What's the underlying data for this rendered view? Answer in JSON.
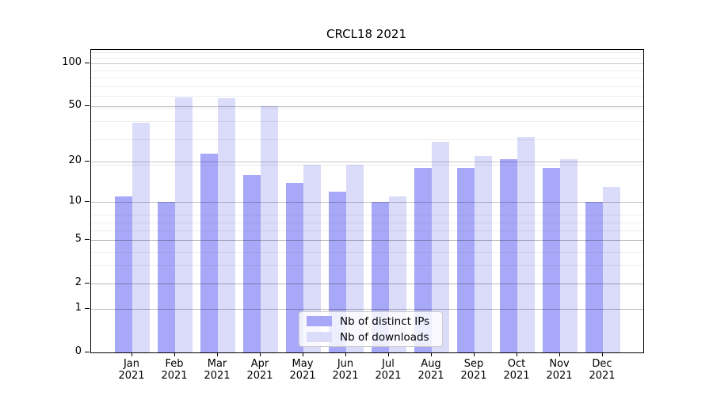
{
  "title": "CRCL18 2021",
  "legend": {
    "entries": [
      {
        "label": "Nb of distinct IPs",
        "color": "#a8a8f8"
      },
      {
        "label": "Nb of downloads",
        "color": "#dbdbfa"
      }
    ]
  },
  "chart_data": {
    "type": "bar",
    "title": "CRCL18 2021",
    "xlabel": "",
    "ylabel": "",
    "yscale": "log(1+x)",
    "ylim": [
      0,
      124
    ],
    "grid": true,
    "legend_position": "lower center",
    "categories": [
      "Jan 2021",
      "Feb 2021",
      "Mar 2021",
      "Apr 2021",
      "May 2021",
      "Jun 2021",
      "Jul 2021",
      "Aug 2021",
      "Sep 2021",
      "Oct 2021",
      "Nov 2021",
      "Dec 2021"
    ],
    "ytick_labels": [
      "100",
      "50",
      "20",
      "10",
      "5",
      "2",
      "1",
      "0"
    ],
    "ytick_values": [
      100,
      50,
      20,
      10,
      5,
      2,
      1,
      0
    ],
    "series": [
      {
        "name": "Nb of distinct IPs",
        "color": "#a8a8f8",
        "values": [
          11,
          10,
          23,
          16,
          14,
          12,
          10,
          18,
          18,
          21,
          18,
          10
        ]
      },
      {
        "name": "Nb of downloads",
        "color": "#dbdbfa",
        "values": [
          38,
          58,
          57,
          50,
          19,
          19,
          11,
          28,
          22,
          30,
          21,
          13
        ]
      }
    ]
  }
}
